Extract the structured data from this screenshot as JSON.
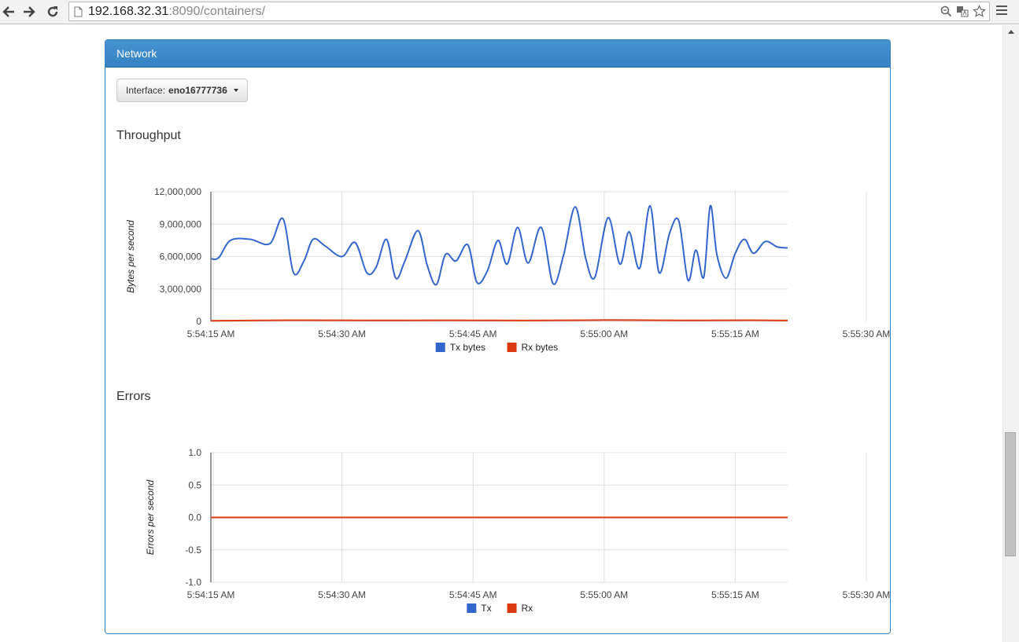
{
  "browser": {
    "url_host": "192.168.32.31",
    "url_rest": ":8090/containers/"
  },
  "panel": {
    "title": "Network",
    "interface_label": "Interface:",
    "interface_value": "eno16777736"
  },
  "sections": {
    "throughput_title": "Throughput",
    "errors_title": "Errors"
  },
  "chart_data": [
    {
      "type": "line",
      "title": "",
      "xlabel": "",
      "ylabel": "Bytes per second",
      "x_tick_labels": [
        "5:54:15 AM",
        "5:54:30 AM",
        "5:54:45 AM",
        "5:55:00 AM",
        "5:55:15 AM",
        "5:55:30 AM"
      ],
      "y_tick_labels": [
        "0",
        "3,000,000",
        "6,000,000",
        "9,000,000",
        "12,000,000"
      ],
      "xlim": [
        15,
        59
      ],
      "ylim": [
        0,
        12000000
      ],
      "grid": true,
      "legend_position": "bottom",
      "series": [
        {
          "name": "Tx bytes",
          "color": "#3366cc",
          "x": [
            15,
            15.6,
            16.5,
            18,
            19.5,
            20.5,
            21.3,
            22.1,
            22.8,
            23.7,
            25,
            26,
            26.9,
            27.6,
            28.4,
            29.1,
            29.8,
            30.8,
            31.5,
            32.2,
            32.9,
            33.7,
            34.6,
            35.3,
            36.1,
            36.9,
            37.6,
            38.4,
            39.2,
            40.2,
            41.1,
            41.9,
            42.8,
            43.6,
            44.3,
            45.3,
            46.2,
            46.9,
            47.7,
            48.5,
            49.2,
            50,
            50.7,
            51.4,
            52,
            52.6,
            53.1,
            53.6,
            54.3,
            55,
            55.7,
            56.4,
            57.3,
            58.2,
            59
          ],
          "y": [
            5800000,
            5900000,
            7500000,
            7600000,
            7200000,
            9500000,
            4500000,
            5600000,
            7600000,
            7000000,
            6000000,
            7300000,
            4500000,
            5000000,
            7600000,
            4000000,
            5600000,
            8400000,
            5200000,
            3400000,
            6200000,
            5600000,
            7100000,
            3600000,
            4700000,
            7500000,
            5300000,
            8700000,
            5400000,
            8700000,
            3500000,
            6100000,
            10600000,
            5800000,
            4100000,
            9600000,
            5300000,
            8300000,
            4900000,
            10700000,
            4500000,
            8200000,
            9300000,
            3800000,
            6600000,
            4100000,
            10700000,
            6200000,
            4000000,
            6300000,
            7600000,
            6300000,
            7400000,
            6900000,
            6800000
          ]
        },
        {
          "name": "Rx bytes",
          "color": "#dc3912",
          "x": [
            15,
            21,
            27,
            33,
            39,
            45,
            51,
            56,
            59
          ],
          "y": [
            50000,
            110000,
            90000,
            100000,
            80000,
            120000,
            90000,
            110000,
            80000
          ]
        }
      ]
    },
    {
      "type": "line",
      "title": "",
      "xlabel": "",
      "ylabel": "Errors per second",
      "x_tick_labels": [
        "5:54:15 AM",
        "5:54:30 AM",
        "5:54:45 AM",
        "5:55:00 AM",
        "5:55:15 AM",
        "5:55:30 AM"
      ],
      "y_tick_labels": [
        "-1.0",
        "-0.5",
        "0.0",
        "0.5",
        "1.0"
      ],
      "xlim": [
        15,
        59
      ],
      "ylim": [
        -1,
        1
      ],
      "grid": true,
      "legend_position": "bottom",
      "series": [
        {
          "name": "Tx",
          "color": "#3366cc",
          "x": [
            15,
            59
          ],
          "y": [
            0,
            0
          ]
        },
        {
          "name": "Rx",
          "color": "#dc3912",
          "x": [
            15,
            59
          ],
          "y": [
            0,
            0
          ]
        }
      ]
    }
  ]
}
